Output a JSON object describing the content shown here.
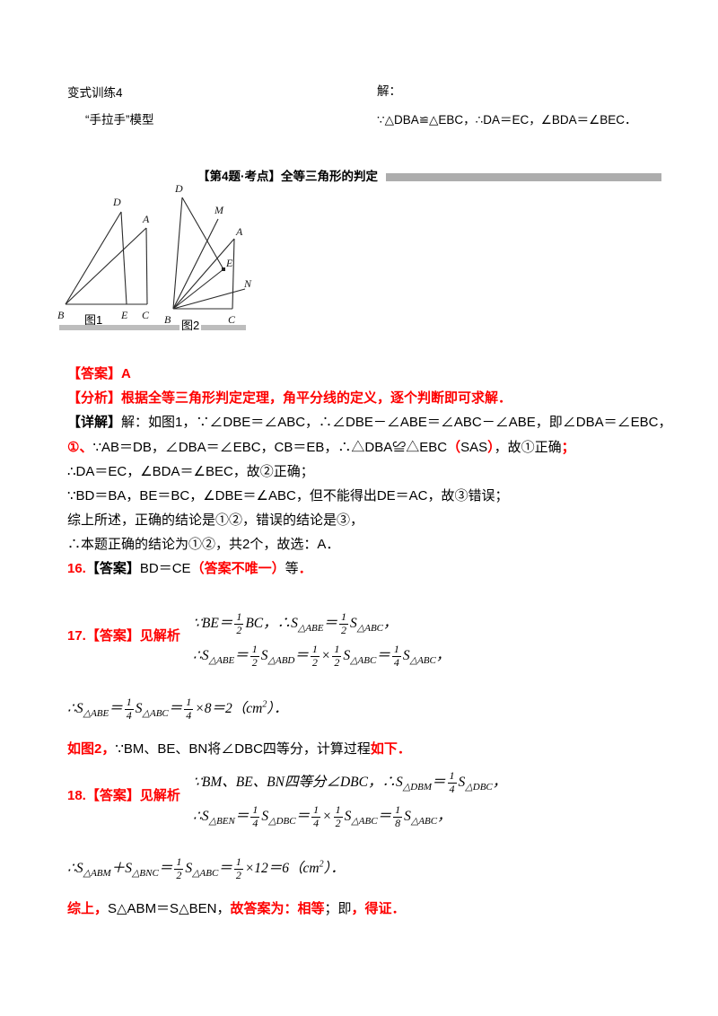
{
  "colors": {
    "accent_red": "#fe0000",
    "text_black": "#000000",
    "artifact_gray": "#b0b0b0"
  },
  "header": {
    "left1": "变式训练4",
    "right1": "解：",
    "left2": "“手拉手”模型",
    "right2": "∵△DBA≌△EBC，∴DA＝EC，∠BDA＝∠BEC．",
    "title": "【第4题·考点】全等三角形的判定"
  },
  "figures": {
    "fig1": {
      "caption": "图1",
      "labels": {
        "D": "D",
        "A": "A",
        "B": "B",
        "E": "E",
        "C": "C"
      }
    },
    "fig2": {
      "caption": "图2",
      "labels": {
        "D": "D",
        "M": "M",
        "A": "A",
        "E": "E",
        "N": "N",
        "B": "B",
        "C": "C"
      }
    }
  },
  "solution": {
    "answer": "【答案】A",
    "analysis": "【分析】根据全等三角形判定定理，角平分线的定义，逐个判断即可求解．",
    "detail": [
      {
        "t": "【详解】",
        "c": "k",
        "b": 1
      },
      {
        "t": "解：如图1，∵∠DBE＝∠ABC，∴∠DBE－∠ABE＝∠ABC－∠ABE，即∠DBA＝∠EBC，",
        "c": "k"
      }
    ],
    "line4": [
      {
        "t": "①、",
        "c": "r"
      },
      {
        "t": "∵AB＝DB，∠DBA＝∠EBC，CB＝EB，∴△DBA≌△EBC",
        "c": "k"
      },
      {
        "t": "（",
        "c": "r"
      },
      {
        "t": "SAS",
        "c": "k"
      },
      {
        "t": "）",
        "c": "r"
      },
      {
        "t": "，故①正确",
        "c": "k"
      },
      {
        "t": "；",
        "c": "r"
      }
    ],
    "line5": "∴DA＝EC，∠BDA＝∠BEC，故②正确；",
    "line6": "∵BD＝BA，BE＝BC，∠DBE＝∠ABC，但不能得出DE＝AC，故③错误；",
    "line7": "综上所述，正确的结论是①②，错误的结论是③，",
    "line8": "∴本题正确的结论为①②，共2个，故选：A．",
    "p16": [
      {
        "t": "16.",
        "c": "r"
      },
      {
        "t": "【答案】",
        "c": "k",
        "b": 1
      },
      {
        "t": "BD＝CE",
        "c": "k"
      },
      {
        "t": "（答案不唯一）",
        "c": "r"
      },
      {
        "t": "等",
        "c": "k"
      },
      {
        "t": "．",
        "c": "r"
      }
    ],
    "p17": {
      "label": "17.【答案】见解析",
      "f1": [
        {
          "t": "∵BE＝"
        },
        {
          "frac": [
            "1",
            "2"
          ]
        },
        {
          "t": "BC，∴S"
        },
        {
          "sub": "△ABE"
        },
        {
          "t": "＝"
        },
        {
          "frac": [
            "1",
            "2"
          ]
        },
        {
          "t": "S"
        },
        {
          "sub": "△ABC"
        },
        {
          "t": "，"
        }
      ],
      "f2": [
        {
          "t": "∴S"
        },
        {
          "sub": "△ABE"
        },
        {
          "t": "＝"
        },
        {
          "frac": [
            "1",
            "2"
          ]
        },
        {
          "t": "S"
        },
        {
          "sub": "△ABD"
        },
        {
          "t": "＝"
        },
        {
          "frac": [
            "1",
            "2"
          ]
        },
        {
          "t": "×"
        },
        {
          "frac": [
            "1",
            "2"
          ]
        },
        {
          "t": "S"
        },
        {
          "sub": "△ABC"
        },
        {
          "t": "＝"
        },
        {
          "frac": [
            "1",
            "4"
          ]
        },
        {
          "t": "S"
        },
        {
          "sub": "△ABC"
        },
        {
          "t": "，"
        }
      ],
      "f3": [
        {
          "t": "∴S"
        },
        {
          "sub": "△ABE"
        },
        {
          "t": "＝"
        },
        {
          "frac": [
            "1",
            "4"
          ]
        },
        {
          "t": "S"
        },
        {
          "sub": "△ABC"
        },
        {
          "t": "＝"
        },
        {
          "frac": [
            "1",
            "4"
          ]
        },
        {
          "t": "×8＝2（cm"
        },
        {
          "sup": "2"
        },
        {
          "t": "）．"
        }
      ]
    },
    "p17note": [
      {
        "t": "如图2，",
        "c": "r"
      },
      {
        "t": "∵BM、BE、BN将∠DBC四等分，计算过程",
        "c": "k"
      },
      {
        "t": "如下．",
        "c": "r"
      }
    ],
    "p18": {
      "label": "18.【答案】见解析",
      "f1": [
        {
          "t": "∵BM、BE、BN四等分∠DBC，∴S"
        },
        {
          "sub": "△DBM"
        },
        {
          "t": "＝"
        },
        {
          "frac": [
            "1",
            "4"
          ]
        },
        {
          "t": "S"
        },
        {
          "sub": "△DBC"
        },
        {
          "t": "，"
        }
      ],
      "f2": [
        {
          "t": "∴S"
        },
        {
          "sub": "△BEN"
        },
        {
          "t": "＝"
        },
        {
          "frac": [
            "1",
            "4"
          ]
        },
        {
          "t": "S"
        },
        {
          "sub": "△DBC"
        },
        {
          "t": "＝"
        },
        {
          "frac": [
            "1",
            "4"
          ]
        },
        {
          "t": "×"
        },
        {
          "frac": [
            "1",
            "2"
          ]
        },
        {
          "t": "S"
        },
        {
          "sub": "△ABC"
        },
        {
          "t": "＝"
        },
        {
          "frac": [
            "1",
            "8"
          ]
        },
        {
          "t": "S"
        },
        {
          "sub": "△ABC"
        },
        {
          "t": "，"
        }
      ],
      "f3": [
        {
          "t": "∴S"
        },
        {
          "sub": "△ABM"
        },
        {
          "t": "＋S"
        },
        {
          "sub": "△BNC"
        },
        {
          "t": "＝"
        },
        {
          "frac": [
            "1",
            "2"
          ]
        },
        {
          "t": "S"
        },
        {
          "sub": "△ABC"
        },
        {
          "t": "＝"
        },
        {
          "frac": [
            "1",
            "2"
          ]
        },
        {
          "t": "×12＝6（cm"
        },
        {
          "sup": "2"
        },
        {
          "t": "）．"
        }
      ]
    },
    "final": [
      {
        "t": "综上，",
        "c": "r"
      },
      {
        "t": "S△ABM＝S△BEN，",
        "c": "k"
      },
      {
        "t": "故答案为：相等",
        "c": "r"
      },
      {
        "t": "；即",
        "c": "k"
      },
      {
        "t": "，得证．",
        "c": "r"
      }
    ]
  }
}
